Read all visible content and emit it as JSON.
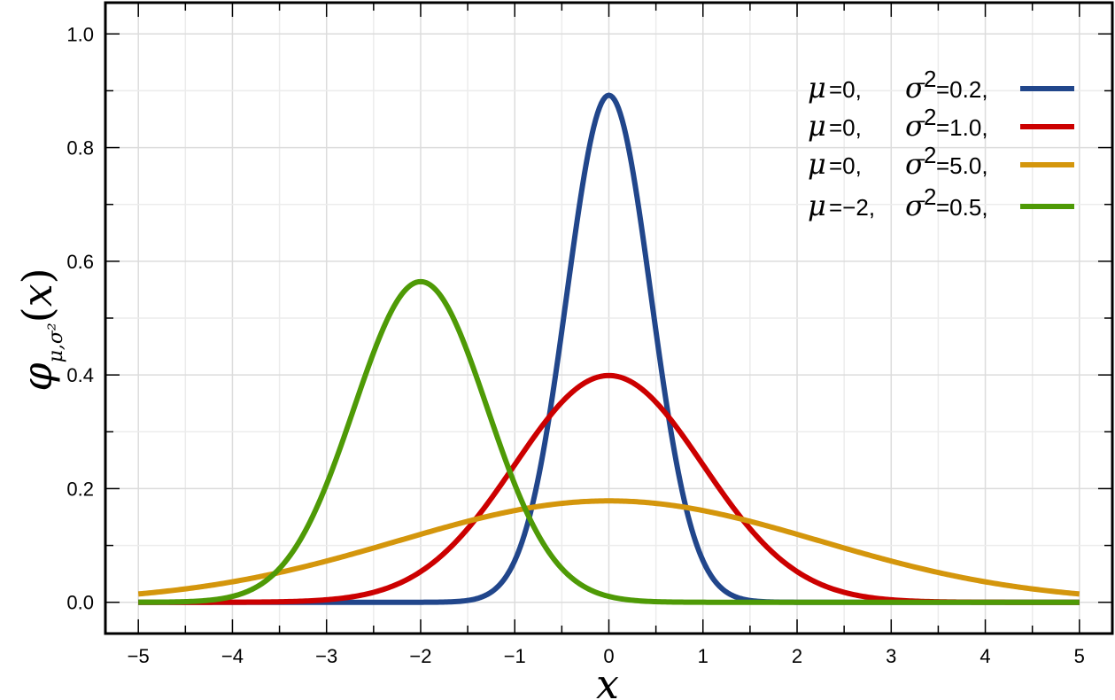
{
  "chart_data": {
    "type": "line",
    "title": "",
    "xlabel": "x",
    "ylabel": "φ_{μ,σ²}(x)",
    "xlim": [
      -5.35,
      5.35
    ],
    "ylim": [
      -0.055,
      1.055
    ],
    "grid": true,
    "legend_position": "top-right",
    "x_ticks": [
      -5,
      -4,
      -3,
      -2,
      -1,
      0,
      1,
      2,
      3,
      4,
      5
    ],
    "x_tick_labels": [
      "−5",
      "−4",
      "−3",
      "−2",
      "−1",
      "0",
      "1",
      "2",
      "3",
      "4",
      "5"
    ],
    "y_ticks": [
      0.0,
      0.2,
      0.4,
      0.6,
      0.8,
      1.0
    ],
    "y_tick_labels": [
      "0.0",
      "0.2",
      "0.4",
      "0.6",
      "0.8",
      "1.0"
    ],
    "x_range": [
      -5,
      5
    ],
    "series": [
      {
        "name": "μ=0, σ²=0.2,",
        "mu": 0,
        "variance": 0.2,
        "color": "#21468b",
        "peak_y": 0.89,
        "legend": {
          "mu_text": "=0,",
          "sigma_text": "=0.2,"
        }
      },
      {
        "name": "μ=0, σ²=1.0,",
        "mu": 0,
        "variance": 1.0,
        "color": "#cc0000",
        "peak_y": 0.4,
        "legend": {
          "mu_text": "=0,",
          "sigma_text": "=1.0,"
        }
      },
      {
        "name": "μ=0, σ²=5.0,",
        "mu": 0,
        "variance": 5.0,
        "color": "#d4960c",
        "peak_y": 0.18,
        "legend": {
          "mu_text": "=0,",
          "sigma_text": "=5.0,"
        }
      },
      {
        "name": "μ=−2, σ²=0.5,",
        "mu": -2,
        "variance": 0.5,
        "color": "#4e9a06",
        "peak_y": 0.56,
        "legend": {
          "mu_text": "=−2,",
          "sigma_text": "=0.5,"
        }
      }
    ]
  }
}
